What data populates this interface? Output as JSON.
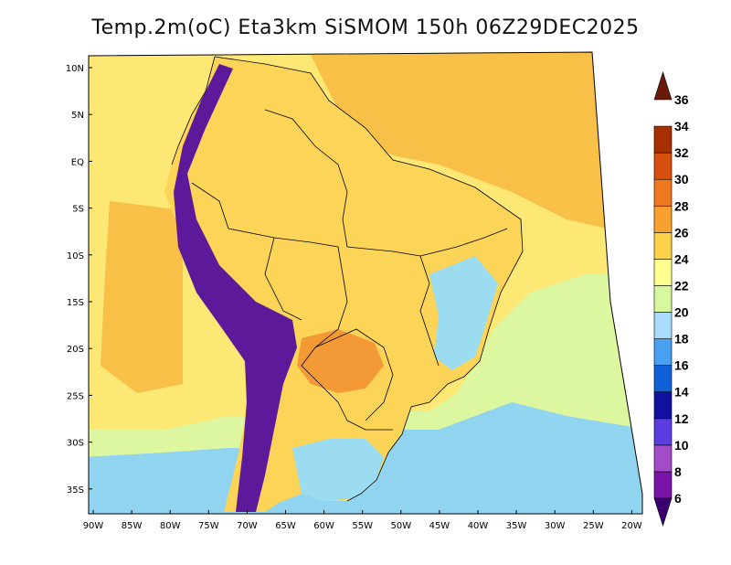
{
  "title": "Temp.2m(oC) Eta3km SiSMOM 150h 06Z29DEC2025",
  "axes": {
    "lat_labels": [
      "10N",
      "5N",
      "EQ",
      "5S",
      "10S",
      "15S",
      "20S",
      "25S",
      "30S",
      "35S"
    ],
    "lon_labels": [
      "90W",
      "85W",
      "80W",
      "75W",
      "70W",
      "65W",
      "60W",
      "55W",
      "50W",
      "45W",
      "40W",
      "35W",
      "30W",
      "25W",
      "20W"
    ]
  },
  "colorbar": {
    "labels": [
      "6",
      "8",
      "10",
      "12",
      "14",
      "16",
      "18",
      "20",
      "22",
      "24",
      "26",
      "28",
      "30",
      "32",
      "34",
      "36"
    ],
    "colors": [
      "#3a0070",
      "#7a14a8",
      "#a24cc8",
      "#5a3ce0",
      "#1210a0",
      "#1060d8",
      "#4aa0f0",
      "#a8dcfa",
      "#d8f8a0",
      "#ffff90",
      "#fcd24a",
      "#f8a030",
      "#f07820",
      "#d85010",
      "#a83000",
      "#6a1a08"
    ]
  },
  "field_colors": {
    "ocean_south": "#90d4f0",
    "ocean_mid": "#dcf7a0",
    "ocean_warm": "#fde775",
    "ocean_hot": "#f9c048",
    "land": "#fbd458",
    "land_hot": "#f39a36",
    "highland": "#9cdcf0",
    "andes": "#5c1a9a",
    "border": "#000000"
  }
}
